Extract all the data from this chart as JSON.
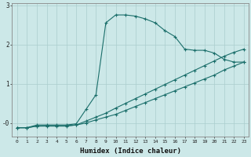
{
  "xlabel": "Humidex (Indice chaleur)",
  "ylabel": "",
  "bg_color": "#cce8e8",
  "line_color": "#1a6e6a",
  "grid_color": "#aacece",
  "xlim": [
    -0.5,
    23.5
  ],
  "ylim": [
    -0.35,
    3.05
  ],
  "line1_x": [
    0,
    1,
    2,
    3,
    4,
    5,
    6,
    7,
    8,
    9,
    10,
    11,
    12,
    13,
    14,
    15,
    16,
    17,
    18,
    19,
    20,
    21,
    22,
    23
  ],
  "line1_y": [
    -0.12,
    -0.12,
    -0.08,
    -0.08,
    -0.08,
    -0.08,
    -0.05,
    0.0,
    0.08,
    0.15,
    0.22,
    0.32,
    0.42,
    0.52,
    0.62,
    0.72,
    0.82,
    0.92,
    1.02,
    1.12,
    1.22,
    1.35,
    1.45,
    1.55
  ],
  "line2_x": [
    0,
    1,
    2,
    3,
    4,
    5,
    6,
    7,
    8,
    9,
    10,
    11,
    12,
    13,
    14,
    15,
    16,
    17,
    18,
    19,
    20,
    21,
    22,
    23
  ],
  "line2_y": [
    -0.12,
    -0.12,
    -0.08,
    -0.07,
    -0.07,
    -0.07,
    -0.05,
    0.05,
    0.15,
    0.25,
    0.38,
    0.5,
    0.62,
    0.74,
    0.86,
    0.98,
    1.1,
    1.22,
    1.34,
    1.46,
    1.58,
    1.7,
    1.8,
    1.88
  ],
  "line3_x": [
    0,
    1,
    2,
    3,
    4,
    5,
    6,
    7,
    8,
    9,
    10,
    11,
    12,
    13,
    14,
    15,
    16,
    17,
    18,
    19,
    20,
    21,
    22,
    23
  ],
  "line3_y": [
    -0.12,
    -0.12,
    -0.05,
    -0.05,
    -0.05,
    -0.05,
    -0.02,
    0.35,
    0.72,
    2.55,
    2.75,
    2.75,
    2.72,
    2.65,
    2.55,
    2.35,
    2.2,
    1.88,
    1.85,
    1.85,
    1.78,
    1.62,
    1.55,
    1.55
  ]
}
